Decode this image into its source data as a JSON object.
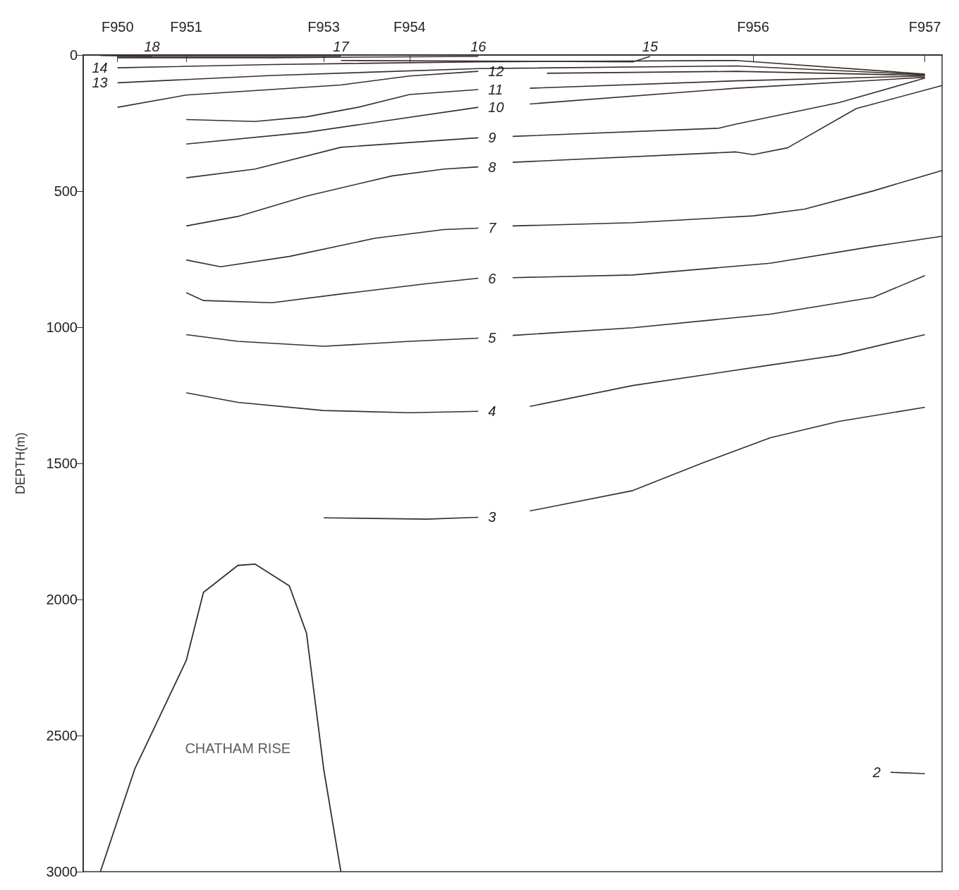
{
  "chart_data": {
    "type": "line",
    "ylabel": "DEPTH(m)",
    "ylim": [
      3000,
      0
    ],
    "categories": [
      null,
      null,
      "F950",
      null,
      null,
      null,
      "F951",
      null,
      null,
      null,
      null,
      null,
      null,
      null,
      "F953",
      null,
      null,
      null,
      null,
      "F954",
      null,
      null,
      null,
      null,
      null,
      null,
      null,
      null,
      null,
      null,
      null,
      null,
      null,
      null,
      null,
      null,
      null,
      null,
      null,
      "F956",
      null,
      null,
      null,
      null,
      null,
      null,
      null,
      null,
      null,
      "F957",
      null
    ],
    "yticks": [
      0,
      500,
      1000,
      1500,
      2000,
      2500,
      3000
    ],
    "series": [
      {
        "name": "18",
        "color": "#3a2e2b",
        "values": [
          null,
          2,
          null,
          null,
          5,
          null,
          null,
          null,
          null,
          null,
          null,
          null,
          null,
          null,
          null,
          null,
          null,
          null,
          null,
          null,
          null,
          null,
          null,
          null,
          null,
          null,
          null,
          null,
          null,
          null,
          null,
          null,
          null,
          null,
          null,
          null,
          null,
          null,
          null,
          null,
          null,
          null,
          null,
          null,
          null,
          null,
          null,
          null,
          null,
          null,
          null
        ]
      },
      {
        "name": "17",
        "color": "#3a2e2b",
        "values": [
          null,
          null,
          5,
          null,
          null,
          null,
          null,
          null,
          null,
          null,
          null,
          null,
          null,
          null,
          null,
          5,
          null,
          null,
          null,
          null,
          null,
          null,
          null,
          null,
          null,
          null,
          null,
          null,
          null,
          null,
          null,
          null,
          null,
          null,
          null,
          null,
          null,
          null,
          null,
          null,
          null,
          null,
          null,
          null,
          null,
          null,
          null,
          null,
          null,
          null,
          null
        ]
      },
      {
        "name": "16",
        "color": "#3a2e2b",
        "values": [
          null,
          null,
          10,
          null,
          null,
          null,
          null,
          null,
          null,
          null,
          null,
          10,
          null,
          null,
          null,
          null,
          null,
          null,
          null,
          null,
          null,
          null,
          null,
          5,
          null,
          null,
          null,
          null,
          null,
          null,
          null,
          null,
          null,
          null,
          null,
          null,
          null,
          null,
          null,
          null,
          null,
          null,
          null,
          null,
          null,
          null,
          null,
          null,
          null,
          null,
          null
        ]
      },
      {
        "name": "15",
        "color": "#3a2e2b",
        "values": [
          null,
          null,
          null,
          null,
          null,
          null,
          null,
          null,
          null,
          null,
          null,
          null,
          null,
          null,
          null,
          20,
          null,
          null,
          null,
          null,
          null,
          null,
          null,
          null,
          null,
          null,
          null,
          null,
          null,
          null,
          null,
          null,
          25,
          5,
          null,
          null,
          null,
          null,
          null,
          null,
          null,
          null,
          null,
          null,
          null,
          null,
          null,
          null,
          null,
          null,
          null
        ]
      },
      {
        "name": "14",
        "color": "#3a2e2b",
        "values": [
          null,
          null,
          47,
          null,
          null,
          null,
          null,
          null,
          null,
          null,
          null,
          35,
          null,
          null,
          null,
          null,
          null,
          null,
          null,
          null,
          null,
          null,
          null,
          25,
          null,
          null,
          null,
          null,
          null,
          null,
          null,
          null,
          null,
          null,
          null,
          null,
          null,
          null,
          20,
          null,
          null,
          null,
          null,
          null,
          null,
          null,
          null,
          null,
          null,
          70,
          null
        ]
      },
      {
        "name": "13",
        "color": "#3a2e2b",
        "values": [
          null,
          null,
          102,
          null,
          null,
          null,
          null,
          null,
          null,
          null,
          null,
          75,
          null,
          null,
          null,
          null,
          null,
          null,
          null,
          null,
          null,
          null,
          null,
          50,
          null,
          null,
          null,
          null,
          null,
          null,
          null,
          null,
          null,
          null,
          null,
          null,
          null,
          null,
          40,
          null,
          null,
          null,
          null,
          null,
          null,
          null,
          null,
          null,
          null,
          72,
          null
        ]
      },
      {
        "name": "12",
        "color": "#3a2e2b",
        "values": [
          null,
          null,
          192,
          null,
          null,
          null,
          147,
          null,
          null,
          null,
          null,
          null,
          null,
          null,
          null,
          110,
          null,
          null,
          null,
          77,
          null,
          null,
          null,
          60,
          null,
          null,
          null,
          null,
          null,
          null,
          null,
          null,
          null,
          null,
          null,
          null,
          null,
          null,
          null,
          null,
          null,
          null,
          null,
          null,
          null,
          null,
          null,
          null,
          null,
          null,
          null
        ]
      },
      {
        "color": "#3a2e2b",
        "values": [
          null,
          null,
          null,
          null,
          null,
          null,
          null,
          null,
          null,
          null,
          null,
          null,
          null,
          null,
          null,
          null,
          null,
          null,
          null,
          null,
          null,
          null,
          null,
          null,
          null,
          null,
          null,
          67,
          null,
          null,
          null,
          null,
          null,
          null,
          null,
          null,
          null,
          null,
          60,
          null,
          null,
          null,
          null,
          null,
          null,
          null,
          null,
          null,
          null,
          75,
          null
        ]
      },
      {
        "name": "11",
        "color": "#3a2e2b",
        "values": [
          null,
          null,
          null,
          null,
          null,
          null,
          237,
          null,
          null,
          null,
          244,
          null,
          null,
          227,
          null,
          null,
          192,
          null,
          null,
          145,
          null,
          null,
          null,
          127,
          null,
          null,
          null,
          null,
          null,
          null,
          null,
          null,
          null,
          null,
          null,
          null,
          null,
          null,
          null,
          null,
          null,
          null,
          null,
          null,
          null,
          null,
          null,
          null,
          null,
          null,
          null
        ]
      },
      {
        "color": "#3a2e2b",
        "values": [
          null,
          null,
          null,
          null,
          null,
          null,
          null,
          null,
          null,
          null,
          null,
          null,
          null,
          null,
          null,
          null,
          null,
          null,
          null,
          null,
          null,
          null,
          null,
          null,
          null,
          null,
          122,
          null,
          null,
          null,
          null,
          null,
          null,
          null,
          null,
          null,
          null,
          null,
          95,
          null,
          null,
          null,
          null,
          null,
          null,
          null,
          null,
          null,
          null,
          77,
          null
        ]
      },
      {
        "name": "10",
        "color": "#3a2e2b",
        "values": [
          null,
          null,
          null,
          null,
          null,
          null,
          327,
          null,
          null,
          null,
          null,
          null,
          null,
          284,
          null,
          null,
          null,
          null,
          null,
          null,
          null,
          null,
          null,
          192,
          null,
          null,
          null,
          null,
          null,
          null,
          null,
          null,
          null,
          null,
          null,
          null,
          null,
          null,
          null,
          null,
          null,
          null,
          null,
          null,
          null,
          null,
          null,
          null,
          null,
          null,
          null
        ]
      },
      {
        "color": "#3a2e2b",
        "values": [
          null,
          null,
          null,
          null,
          null,
          null,
          null,
          null,
          null,
          null,
          null,
          null,
          null,
          null,
          null,
          null,
          null,
          null,
          null,
          null,
          null,
          null,
          null,
          null,
          null,
          null,
          180,
          null,
          null,
          null,
          null,
          null,
          null,
          null,
          null,
          null,
          null,
          null,
          122,
          null,
          null,
          null,
          null,
          null,
          null,
          null,
          null,
          null,
          null,
          82,
          null
        ]
      },
      {
        "name": "9",
        "color": "#3a2e2b",
        "values": [
          null,
          null,
          null,
          null,
          null,
          null,
          451,
          null,
          null,
          null,
          419,
          null,
          null,
          null,
          null,
          339,
          null,
          null,
          null,
          null,
          null,
          null,
          null,
          304,
          null,
          null,
          null,
          null,
          null,
          null,
          null,
          null,
          null,
          null,
          null,
          null,
          null,
          null,
          null,
          null,
          null,
          null,
          null,
          null,
          null,
          null,
          null,
          null,
          null,
          null,
          null
        ]
      },
      {
        "color": "#3a2e2b",
        "values": [
          null,
          null,
          null,
          null,
          null,
          null,
          null,
          null,
          null,
          null,
          null,
          null,
          null,
          null,
          null,
          null,
          null,
          null,
          null,
          null,
          null,
          null,
          null,
          null,
          null,
          299,
          null,
          null,
          null,
          null,
          null,
          null,
          null,
          null,
          null,
          null,
          null,
          269,
          254,
          null,
          null,
          null,
          null,
          null,
          175,
          null,
          null,
          null,
          null,
          85,
          null
        ]
      },
      {
        "name": "8",
        "color": "#3a2e2b",
        "values": [
          null,
          null,
          null,
          null,
          null,
          null,
          628,
          null,
          null,
          593,
          null,
          null,
          null,
          518,
          null,
          null,
          null,
          null,
          444,
          null,
          null,
          419,
          null,
          411,
          null,
          null,
          null,
          null,
          null,
          null,
          null,
          null,
          null,
          null,
          null,
          null,
          null,
          null,
          null,
          null,
          null,
          null,
          null,
          null,
          null,
          null,
          null,
          null,
          null,
          null,
          null
        ]
      },
      {
        "color": "#3a2e2b",
        "values": [
          null,
          null,
          null,
          null,
          null,
          null,
          null,
          null,
          null,
          null,
          null,
          null,
          null,
          null,
          null,
          null,
          null,
          null,
          null,
          null,
          null,
          null,
          null,
          null,
          null,
          394,
          null,
          null,
          null,
          null,
          null,
          null,
          null,
          null,
          null,
          null,
          null,
          null,
          356,
          366,
          null,
          341,
          null,
          null,
          null,
          197,
          null,
          null,
          null,
          null,
          112
        ]
      },
      {
        "name": "7",
        "color": "#3a2e2b",
        "values": [
          null,
          null,
          null,
          null,
          null,
          null,
          753,
          null,
          778,
          null,
          null,
          null,
          740,
          null,
          null,
          null,
          null,
          673,
          null,
          null,
          null,
          641,
          null,
          636,
          null,
          null,
          null,
          null,
          null,
          null,
          null,
          null,
          null,
          null,
          null,
          null,
          null,
          null,
          null,
          null,
          null,
          null,
          null,
          null,
          null,
          null,
          null,
          null,
          null,
          null,
          null
        ]
      },
      {
        "color": "#3a2e2b",
        "values": [
          null,
          null,
          null,
          null,
          null,
          null,
          null,
          null,
          null,
          null,
          null,
          null,
          null,
          null,
          null,
          null,
          null,
          null,
          null,
          null,
          null,
          null,
          null,
          null,
          null,
          628,
          null,
          null,
          null,
          null,
          null,
          null,
          616,
          null,
          null,
          null,
          null,
          null,
          null,
          591,
          null,
          null,
          566,
          null,
          null,
          null,
          499,
          null,
          null,
          null,
          424
        ]
      },
      {
        "name": "6",
        "color": "#3a2e2b",
        "values": [
          null,
          null,
          null,
          null,
          null,
          null,
          873,
          902,
          null,
          null,
          null,
          910,
          null,
          null,
          null,
          878,
          null,
          null,
          null,
          null,
          840,
          null,
          null,
          820,
          null,
          null,
          null,
          null,
          null,
          null,
          null,
          null,
          null,
          null,
          null,
          null,
          null,
          null,
          null,
          null,
          null,
          null,
          null,
          null,
          null,
          null,
          null,
          null,
          null,
          null,
          null
        ]
      },
      {
        "color": "#3a2e2b",
        "values": [
          null,
          null,
          null,
          null,
          null,
          null,
          null,
          null,
          null,
          null,
          null,
          null,
          null,
          null,
          null,
          null,
          null,
          null,
          null,
          null,
          null,
          null,
          null,
          null,
          null,
          818,
          null,
          null,
          null,
          null,
          null,
          null,
          808,
          null,
          null,
          null,
          null,
          null,
          null,
          null,
          765,
          null,
          null,
          null,
          null,
          null,
          703,
          null,
          null,
          null,
          666
        ]
      },
      {
        "name": "5",
        "color": "#3a2e2b",
        "values": [
          null,
          null,
          null,
          null,
          null,
          null,
          1027,
          null,
          null,
          1052,
          null,
          null,
          null,
          null,
          1070,
          null,
          null,
          null,
          null,
          1052,
          null,
          null,
          null,
          1040,
          null,
          null,
          null,
          null,
          null,
          null,
          null,
          null,
          null,
          null,
          null,
          null,
          null,
          null,
          null,
          null,
          null,
          null,
          null,
          null,
          null,
          null,
          null,
          null,
          null,
          null,
          null
        ]
      },
      {
        "color": "#3a2e2b",
        "values": [
          null,
          null,
          null,
          null,
          null,
          null,
          null,
          null,
          null,
          null,
          null,
          null,
          null,
          null,
          null,
          null,
          null,
          null,
          null,
          null,
          null,
          null,
          null,
          null,
          null,
          1030,
          null,
          null,
          null,
          null,
          null,
          null,
          1002,
          null,
          null,
          null,
          null,
          null,
          null,
          null,
          952,
          null,
          null,
          null,
          null,
          null,
          890,
          null,
          null,
          810,
          null
        ]
      },
      {
        "name": "4",
        "color": "#3a2e2b",
        "values": [
          null,
          null,
          null,
          null,
          null,
          null,
          1241,
          null,
          null,
          1276,
          null,
          null,
          null,
          null,
          1306,
          null,
          null,
          null,
          null,
          1314,
          null,
          null,
          null,
          1309,
          null,
          null,
          null,
          null,
          null,
          null,
          null,
          null,
          null,
          null,
          null,
          null,
          null,
          null,
          null,
          null,
          null,
          null,
          null,
          null,
          null,
          null,
          null,
          null,
          null,
          null,
          null
        ]
      },
      {
        "color": "#3a2e2b",
        "values": [
          null,
          null,
          null,
          null,
          null,
          null,
          null,
          null,
          null,
          null,
          null,
          null,
          null,
          null,
          null,
          null,
          null,
          null,
          null,
          null,
          null,
          null,
          null,
          null,
          null,
          null,
          1291,
          null,
          null,
          null,
          null,
          null,
          1214,
          null,
          null,
          null,
          null,
          null,
          null,
          null,
          1139,
          null,
          null,
          null,
          1102,
          null,
          null,
          null,
          null,
          1027,
          null
        ]
      },
      {
        "name": "3",
        "color": "#3a2e2b",
        "values": [
          null,
          null,
          null,
          null,
          null,
          null,
          null,
          null,
          null,
          null,
          null,
          null,
          null,
          null,
          1700,
          null,
          null,
          null,
          null,
          null,
          1705,
          null,
          null,
          1698,
          null,
          null,
          null,
          null,
          null,
          null,
          null,
          null,
          null,
          null,
          null,
          null,
          null,
          null,
          null,
          null,
          null,
          null,
          null,
          null,
          null,
          null,
          null,
          null,
          null,
          null,
          null
        ]
      },
      {
        "color": "#3a2e2b",
        "values": [
          null,
          null,
          null,
          null,
          null,
          null,
          null,
          null,
          null,
          null,
          null,
          null,
          null,
          null,
          null,
          null,
          null,
          null,
          null,
          null,
          null,
          null,
          null,
          null,
          null,
          null,
          1675,
          null,
          null,
          null,
          null,
          null,
          1600,
          null,
          null,
          null,
          1500,
          null,
          null,
          null,
          1406,
          null,
          null,
          null,
          1346,
          null,
          null,
          null,
          null,
          1294,
          null
        ]
      },
      {
        "name": "2",
        "color": "#3a2e2b",
        "values": [
          null,
          null,
          null,
          null,
          null,
          null,
          null,
          null,
          null,
          null,
          null,
          null,
          null,
          null,
          null,
          null,
          null,
          null,
          null,
          null,
          null,
          null,
          null,
          null,
          null,
          null,
          null,
          null,
          null,
          null,
          null,
          null,
          null,
          null,
          null,
          null,
          null,
          null,
          null,
          null,
          null,
          null,
          null,
          null,
          null,
          null,
          null,
          2635,
          null,
          2640,
          null
        ]
      },
      {
        "name": "CHATHAM RISE",
        "color": "#3a2e2b",
        "values": [
          null,
          3000,
          null,
          2623,
          null,
          null,
          2224,
          1974,
          null,
          1875,
          1870,
          null,
          1950,
          2124,
          2623,
          3000,
          null,
          null,
          null,
          null,
          null,
          null,
          null,
          null,
          null,
          null,
          null,
          null,
          null,
          null,
          null,
          null,
          null,
          null,
          null,
          null,
          null,
          null,
          null,
          null,
          null,
          null,
          null,
          null,
          null,
          null,
          null,
          null,
          null,
          null,
          null
        ]
      }
    ]
  }
}
